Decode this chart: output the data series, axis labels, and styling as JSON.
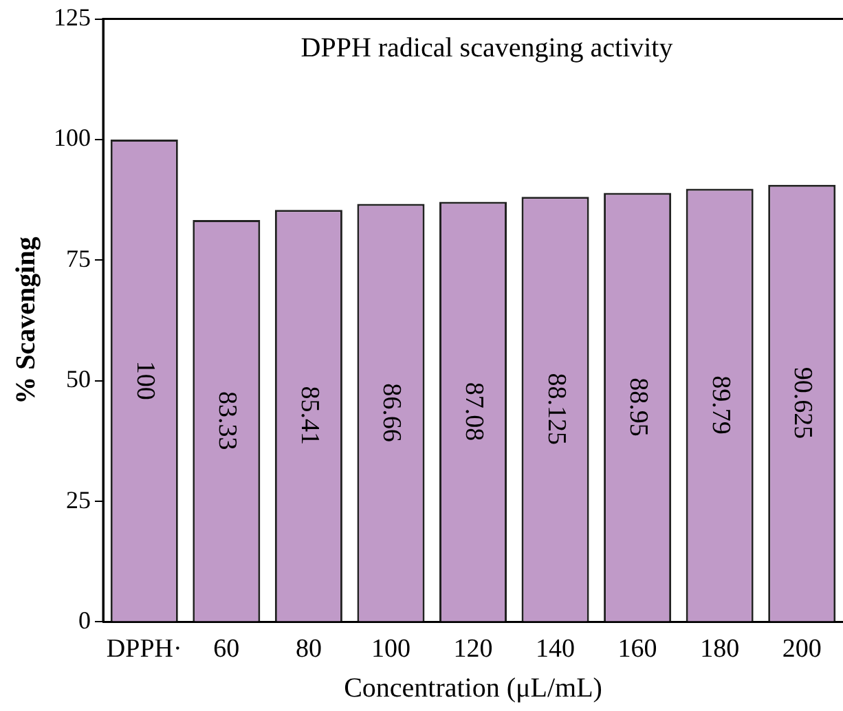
{
  "chart_data": {
    "type": "bar",
    "title": "DPPH radical scavenging activity",
    "xlabel": "Concentration (μL/mL)",
    "ylabel": "% Scavenging",
    "categories": [
      "DPPH·",
      "60",
      "80",
      "100",
      "120",
      "140",
      "160",
      "180",
      "200"
    ],
    "values": [
      100,
      83.33,
      85.41,
      86.66,
      87.08,
      88.125,
      88.95,
      89.79,
      90.625
    ],
    "color": "#c09ac8",
    "ylim": [
      0,
      125
    ],
    "yticks": [
      0,
      25,
      50,
      75,
      100,
      125
    ],
    "grid": false,
    "legend": false,
    "data_labels": true
  }
}
